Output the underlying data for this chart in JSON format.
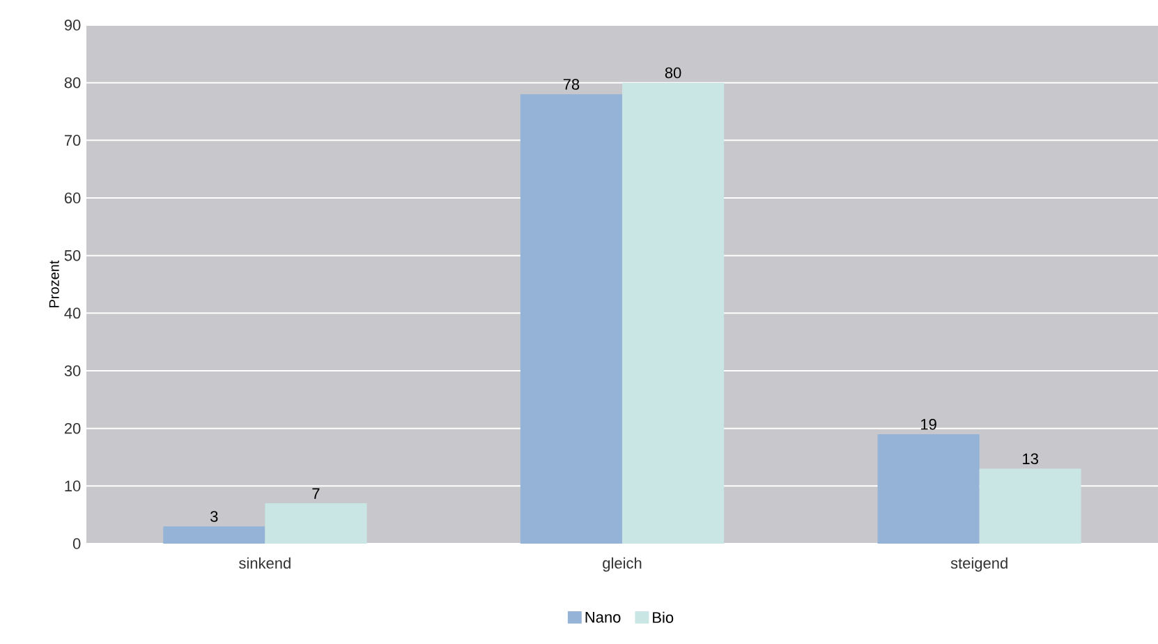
{
  "chart_data": {
    "type": "bar",
    "ylabel": "Prozent",
    "categories": [
      "sinkend",
      "gleich",
      "steigend"
    ],
    "series": [
      {
        "name": "Nano",
        "color": "#95b3d7",
        "values": [
          3,
          78,
          19
        ]
      },
      {
        "name": "Bio",
        "color": "#c9e6e4",
        "values": [
          7,
          80,
          13
        ]
      }
    ],
    "ylim": [
      0,
      90
    ],
    "yticks": [
      0,
      10,
      20,
      30,
      40,
      50,
      60,
      70,
      80,
      90
    ],
    "grid": "y",
    "legend": "bottom",
    "data_labels": true
  }
}
